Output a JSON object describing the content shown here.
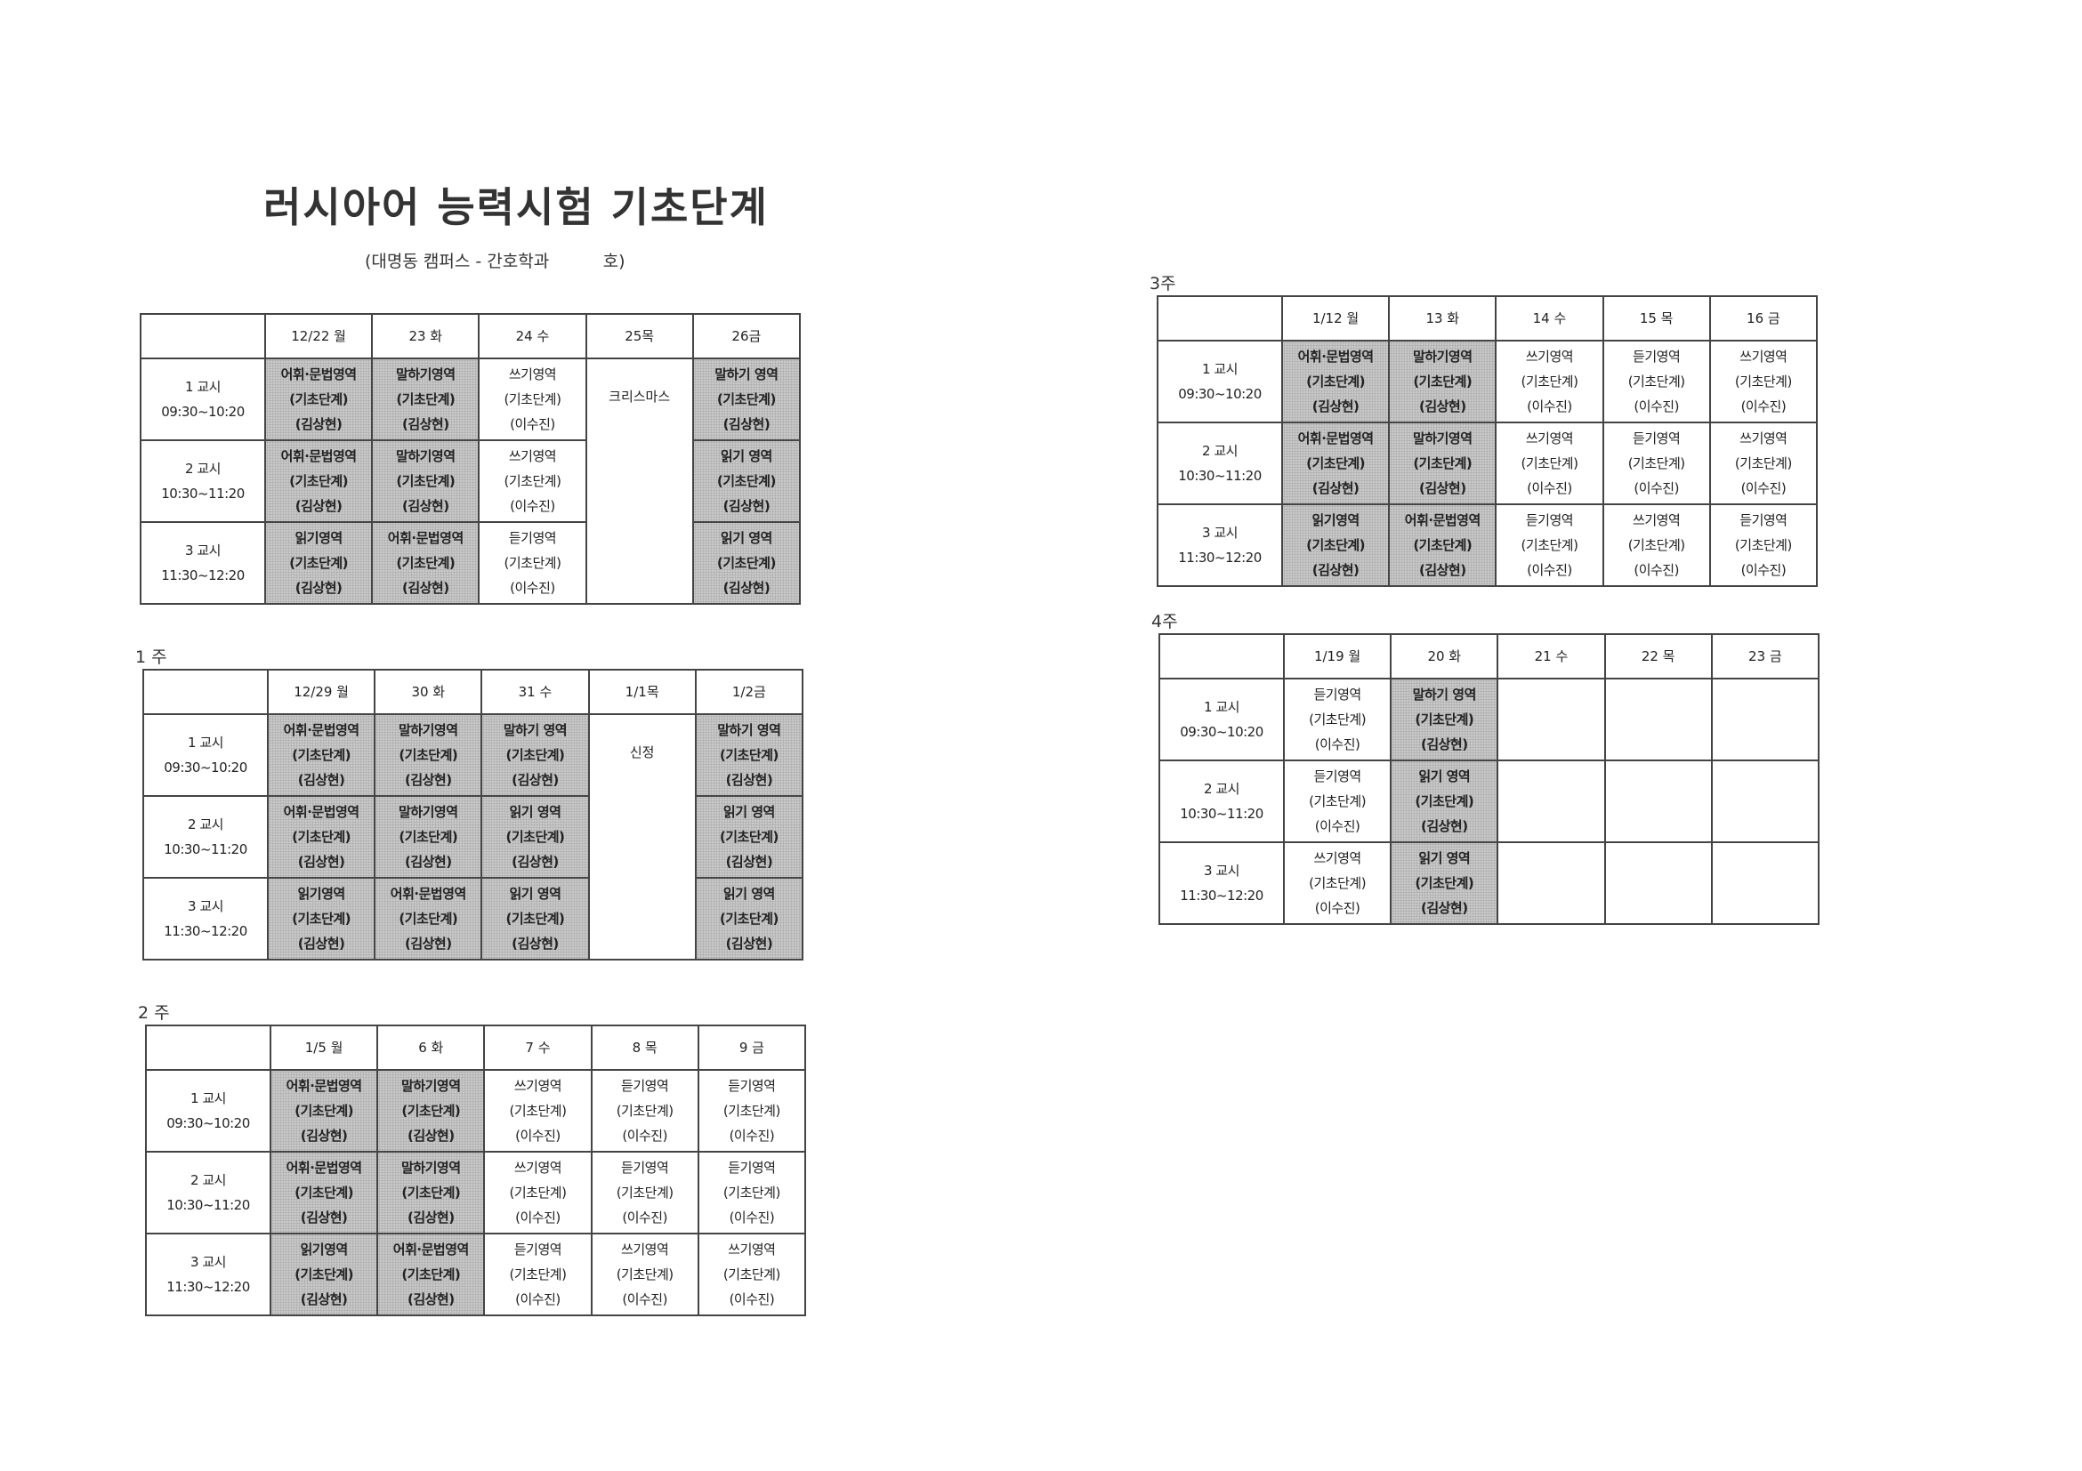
{
  "title": "러시아어 능력시험 기초단계",
  "subtitle": "(대명동 캠퍼스 - 간호학과          호)",
  "periods": [
    {
      "name": "1 교시",
      "time": "09:30~10:20"
    },
    {
      "name": "2 교시",
      "time": "10:30~11:20"
    },
    {
      "name": "3 교시",
      "time": "11:30~12:20"
    }
  ],
  "weeks": [
    {
      "label": "",
      "headers": [
        "12/22 월",
        "23 화",
        "24 수",
        "25목",
        "26금"
      ],
      "holiday": {
        "col": 3,
        "text": "크리스마스"
      },
      "rows": [
        [
          [
            "어휘·문법영역",
            "(기초단계)",
            "(김상현)",
            1
          ],
          [
            "말하기영역",
            "(기초단계)",
            "(김상현)",
            1
          ],
          [
            "쓰기영역",
            "(기초단계)",
            "(이수진)",
            0
          ],
          null,
          [
            "말하기 영역",
            "(기초단계)",
            "(김상현)",
            1
          ]
        ],
        [
          [
            "어휘·문법영역",
            "(기초단계)",
            "(김상현)",
            1
          ],
          [
            "말하기영역",
            "(기초단계)",
            "(김상현)",
            1
          ],
          [
            "쓰기영역",
            "(기초단계)",
            "(이수진)",
            0
          ],
          null,
          [
            "읽기 영역",
            "(기초단계)",
            "(김상현)",
            1
          ]
        ],
        [
          [
            "읽기영역",
            "(기초단계)",
            "(김상현)",
            1
          ],
          [
            "어휘·문법영역",
            "(기초단계)",
            "(김상현)",
            1
          ],
          [
            "듣기영역",
            "(기초단계)",
            "(이수진)",
            0
          ],
          null,
          [
            "읽기 영역",
            "(기초단계)",
            "(김상현)",
            1
          ]
        ]
      ]
    },
    {
      "label": "1 주",
      "headers": [
        "12/29 월",
        "30 화",
        "31 수",
        "1/1목",
        "1/2금"
      ],
      "holiday": {
        "col": 3,
        "text": "신정"
      },
      "rows": [
        [
          [
            "어휘·문법영역",
            "(기초단계)",
            "(김상현)",
            1
          ],
          [
            "말하기영역",
            "(기초단계)",
            "(김상현)",
            1
          ],
          [
            "말하기 영역",
            "(기초단계)",
            "(김상현)",
            1
          ],
          null,
          [
            "말하기 영역",
            "(기초단계)",
            "(김상현)",
            1
          ]
        ],
        [
          [
            "어휘·문법영역",
            "(기초단계)",
            "(김상현)",
            1
          ],
          [
            "말하기영역",
            "(기초단계)",
            "(김상현)",
            1
          ],
          [
            "읽기 영역",
            "(기초단계)",
            "(김상현)",
            1
          ],
          null,
          [
            "읽기 영역",
            "(기초단계)",
            "(김상현)",
            1
          ]
        ],
        [
          [
            "읽기영역",
            "(기초단계)",
            "(김상현)",
            1
          ],
          [
            "어휘·문법영역",
            "(기초단계)",
            "(김상현)",
            1
          ],
          [
            "읽기 영역",
            "(기초단계)",
            "(김상현)",
            1
          ],
          null,
          [
            "읽기 영역",
            "(기초단계)",
            "(김상현)",
            1
          ]
        ]
      ]
    },
    {
      "label": "2 주",
      "headers": [
        "1/5 월",
        "6 화",
        "7 수",
        "8 목",
        "9 금"
      ],
      "rows": [
        [
          [
            "어휘·문법영역",
            "(기초단계)",
            "(김상현)",
            1
          ],
          [
            "말하기영역",
            "(기초단계)",
            "(김상현)",
            1
          ],
          [
            "쓰기영역",
            "(기초단계)",
            "(이수진)",
            0
          ],
          [
            "듣기영역",
            "(기초단계)",
            "(이수진)",
            0
          ],
          [
            "듣기영역",
            "(기초단계)",
            "(이수진)",
            0
          ]
        ],
        [
          [
            "어휘·문법영역",
            "(기초단계)",
            "(김상현)",
            1
          ],
          [
            "말하기영역",
            "(기초단계)",
            "(김상현)",
            1
          ],
          [
            "쓰기영역",
            "(기초단계)",
            "(이수진)",
            0
          ],
          [
            "듣기영역",
            "(기초단계)",
            "(이수진)",
            0
          ],
          [
            "듣기영역",
            "(기초단계)",
            "(이수진)",
            0
          ]
        ],
        [
          [
            "읽기영역",
            "(기초단계)",
            "(김상현)",
            1
          ],
          [
            "어휘·문법영역",
            "(기초단계)",
            "(김상현)",
            1
          ],
          [
            "듣기영역",
            "(기초단계)",
            "(이수진)",
            0
          ],
          [
            "쓰기영역",
            "(기초단계)",
            "(이수진)",
            0
          ],
          [
            "쓰기영역",
            "(기초단계)",
            "(이수진)",
            0
          ]
        ]
      ]
    },
    {
      "label": "3주",
      "headers": [
        "1/12 월",
        "13 화",
        "14 수",
        "15 목",
        "16 금"
      ],
      "rows": [
        [
          [
            "어휘·문법영역",
            "(기초단계)",
            "(김상현)",
            1
          ],
          [
            "말하기영역",
            "(기초단계)",
            "(김상현)",
            1
          ],
          [
            "쓰기영역",
            "(기초단계)",
            "(이수진)",
            0
          ],
          [
            "듣기영역",
            "(기초단계)",
            "(이수진)",
            0
          ],
          [
            "쓰기영역",
            "(기초단계)",
            "(이수진)",
            0
          ]
        ],
        [
          [
            "어휘·문법영역",
            "(기초단계)",
            "(김상현)",
            1
          ],
          [
            "말하기영역",
            "(기초단계)",
            "(김상현)",
            1
          ],
          [
            "쓰기영역",
            "(기초단계)",
            "(이수진)",
            0
          ],
          [
            "듣기영역",
            "(기초단계)",
            "(이수진)",
            0
          ],
          [
            "쓰기영역",
            "(기초단계)",
            "(이수진)",
            0
          ]
        ],
        [
          [
            "읽기영역",
            "(기초단계)",
            "(김상현)",
            1
          ],
          [
            "어휘·문법영역",
            "(기초단계)",
            "(김상현)",
            1
          ],
          [
            "듣기영역",
            "(기초단계)",
            "(이수진)",
            0
          ],
          [
            "쓰기영역",
            "(기초단계)",
            "(이수진)",
            0
          ],
          [
            "듣기영역",
            "(기초단계)",
            "(이수진)",
            0
          ]
        ]
      ]
    },
    {
      "label": "4주",
      "headers": [
        "1/19 월",
        "20 화",
        "21 수",
        "22 목",
        "23 금"
      ],
      "rows": [
        [
          [
            "듣기영역",
            "(기초단계)",
            "(이수진)",
            0
          ],
          [
            "말하기 영역",
            "(기초단계)",
            "(김상현)",
            1
          ],
          [],
          [],
          []
        ],
        [
          [
            "듣기영역",
            "(기초단계)",
            "(이수진)",
            0
          ],
          [
            "읽기 영역",
            "(기초단계)",
            "(김상현)",
            1
          ],
          [],
          [],
          []
        ],
        [
          [
            "쓰기영역",
            "(기초단계)",
            "(이수진)",
            0
          ],
          [
            "읽기 영역",
            "(기초단계)",
            "(김상현)",
            1
          ],
          [],
          [],
          []
        ]
      ]
    }
  ]
}
